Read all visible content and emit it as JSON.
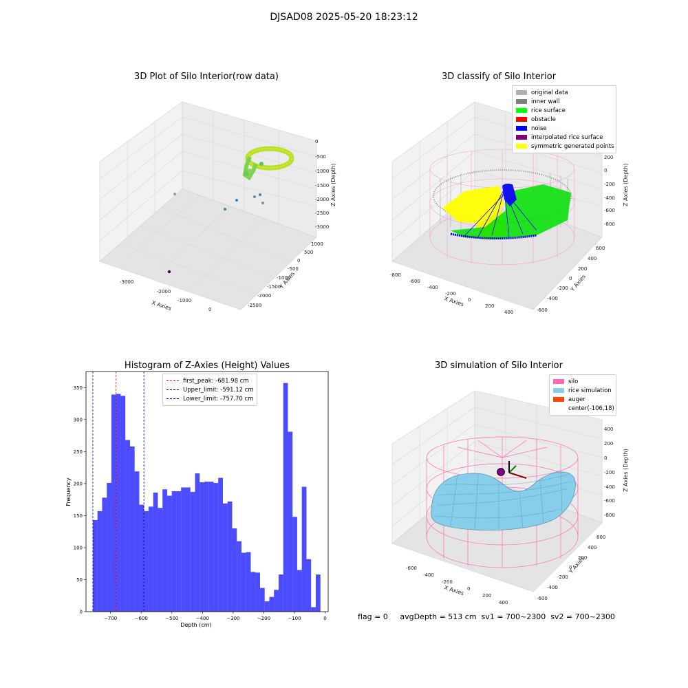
{
  "suptitle": "DJSAD08 2025-05-20 18:23:12",
  "status_text": "flag = 0     avgDepth = 513 cm  sv1 = 700~2300  sv2 = 700~2300",
  "chart_data": [
    {
      "type": "scatter3d",
      "title": "3D Plot of Silo Interior(row data)",
      "xlabel": "X Axies",
      "ylabel": "Y Axies",
      "zlabel": "Z Axies (Depth)",
      "x_ticks": [
        "-3000",
        "-2000",
        "-1000",
        "0"
      ],
      "y_ticks": [
        "1000",
        "500",
        "0",
        "-500",
        "-1000",
        "-1500",
        "-2000",
        "-2500"
      ],
      "z_ticks": [
        "0",
        "-500",
        "-1000",
        "-1500",
        "-2000",
        "-2500",
        "-3000"
      ],
      "grid": true,
      "colors": {
        "low": "#440154",
        "mid": "#21918c",
        "high": "#fde725",
        "cluster": "#9ad62a"
      }
    },
    {
      "type": "scatter3d",
      "title": "3D classify of Silo Interior",
      "xlabel": "X Axies",
      "ylabel": "Y Axies",
      "zlabel": "Z Axies (Depth)",
      "x_ticks": [
        "-800",
        "-600",
        "-400",
        "-200",
        "0",
        "200",
        "400"
      ],
      "y_ticks": [
        "600",
        "400",
        "200",
        "0",
        "-200",
        "-400",
        "-600"
      ],
      "z_ticks": [
        "200",
        "0",
        "-200",
        "-400",
        "-600",
        "-800"
      ],
      "grid": true,
      "legend_position": "top-right",
      "legend": [
        {
          "label": "original data",
          "color": "#b0b0b0"
        },
        {
          "label": "inner wall",
          "color": "#808080"
        },
        {
          "label": "rice surface",
          "color": "#00ff00"
        },
        {
          "label": "obstacle",
          "color": "#ff0000"
        },
        {
          "label": "noise",
          "color": "#0000ff"
        },
        {
          "label": "interpolated rice surface",
          "color": "#800080"
        },
        {
          "label": "symmetric generated points",
          "color": "#ffff00"
        }
      ]
    },
    {
      "type": "bar",
      "title": "Histogram of Z-Axies (Height) Values",
      "xlabel": "Depth (cm)",
      "ylabel": "Frequency",
      "xlim": [
        -780,
        10
      ],
      "ylim": [
        0,
        375
      ],
      "x_ticks": [
        -700,
        -600,
        -500,
        -400,
        -300,
        -200,
        -100,
        0
      ],
      "y_ticks": [
        0,
        50,
        100,
        150,
        200,
        250,
        300,
        350
      ],
      "bar_color": "#0000ff",
      "bin_start": -757.7,
      "bin_width": 15.15,
      "values": [
        143,
        157,
        178,
        201,
        339,
        340,
        337,
        268,
        258,
        219,
        167,
        157,
        164,
        186,
        162,
        191,
        181,
        188,
        188,
        194,
        194,
        187,
        216,
        202,
        203,
        203,
        201,
        209,
        169,
        172,
        130,
        110,
        92,
        93,
        62,
        61,
        37,
        16,
        23,
        34,
        58,
        357,
        281,
        148,
        65,
        195,
        82,
        7,
        58
      ],
      "vlines": [
        {
          "label": "first_peak: -681.98 cm",
          "x": -681.98,
          "color": "#ff0000"
        },
        {
          "label": "Upper_limit: -591.12 cm",
          "x": -591.12,
          "color": "#00008b"
        },
        {
          "label": "Lower_limit: -757.70 cm",
          "x": -757.7,
          "color": "#00008b"
        }
      ],
      "legend_position": "top-center",
      "grid": false
    },
    {
      "type": "surface3d",
      "title": "3D simulation of Silo Interior",
      "xlabel": "X Axies",
      "ylabel": "Y Axies",
      "zlabel": "Z Axies (Depth)",
      "x_ticks": [
        "-600",
        "-400",
        "-200",
        "0",
        "200",
        "400"
      ],
      "y_ticks": [
        "600",
        "400",
        "200",
        "0",
        "-200",
        "-400",
        "-600"
      ],
      "z_ticks": [
        "400",
        "200",
        "0",
        "-200",
        "-400",
        "-600",
        "-800"
      ],
      "grid": true,
      "legend_position": "top-right",
      "legend": [
        {
          "label": "silo",
          "color": "#ff69b4"
        },
        {
          "label": "rice simulation",
          "color": "#87ceeb"
        },
        {
          "label": "auger",
          "color": "#ff4500"
        },
        {
          "label": "center(-106,18)",
          "color": ""
        }
      ]
    }
  ]
}
